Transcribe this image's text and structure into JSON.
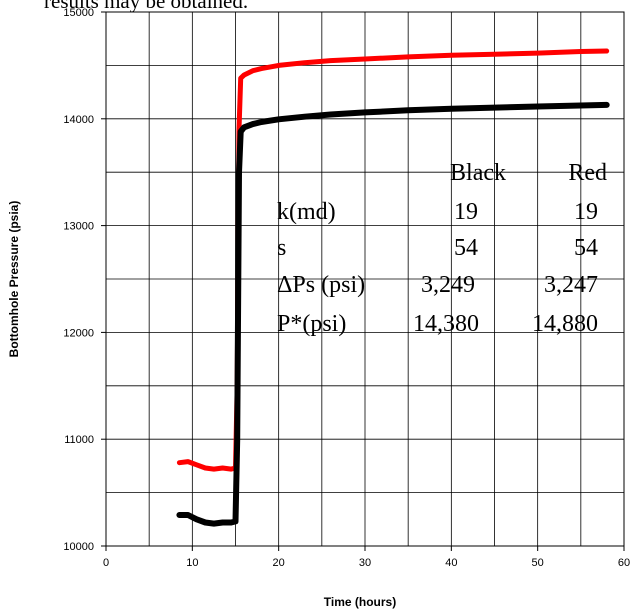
{
  "caption": "results may be obtained.",
  "chart_data": {
    "type": "line",
    "xlabel": "Time (hours)",
    "ylabel": "Bottomhole Pressure (psia)",
    "xlim": [
      0,
      60
    ],
    "ylim": [
      10000,
      15000
    ],
    "x_ticks": [
      "0",
      "10",
      "20",
      "30",
      "40",
      "50",
      "60"
    ],
    "y_ticks": [
      "10000",
      "11000",
      "12000",
      "13000",
      "14000",
      "15000"
    ],
    "grid": true,
    "series": [
      {
        "color": "#ff0000",
        "x": [
          8.5,
          9.5,
          10.5,
          11.5,
          12.5,
          13.5,
          14.5,
          15.0,
          15.2,
          15.4,
          15.6,
          16,
          17,
          18,
          20,
          23,
          26,
          30,
          35,
          40,
          45,
          50,
          55,
          58
        ],
        "y": [
          10780,
          10790,
          10760,
          10730,
          10720,
          10730,
          10720,
          10730,
          11500,
          13900,
          14380,
          14410,
          14450,
          14470,
          14500,
          14525,
          14545,
          14560,
          14580,
          14595,
          14605,
          14615,
          14630,
          14635
        ]
      },
      {
        "color": "#000000",
        "x": [
          8.5,
          9.5,
          10.5,
          11.5,
          12.5,
          13.5,
          14.5,
          15.0,
          15.2,
          15.4,
          15.6,
          16,
          17,
          18,
          20,
          23,
          26,
          30,
          35,
          40,
          45,
          50,
          55,
          58
        ],
        "y": [
          10290,
          10290,
          10250,
          10220,
          10210,
          10220,
          10220,
          10230,
          11000,
          13500,
          13880,
          13920,
          13950,
          13970,
          13995,
          14020,
          14040,
          14060,
          14080,
          14095,
          14105,
          14115,
          14125,
          14130
        ]
      }
    ],
    "table": {
      "headers": [
        "Black",
        "Red"
      ],
      "rows": [
        {
          "label": "k(md)",
          "black": "19",
          "red": "19"
        },
        {
          "label": "s",
          "black": "54",
          "red": "54"
        },
        {
          "label": "ΔPs (psi)",
          "black": "3,249",
          "red": "3,247"
        },
        {
          "label": "P*(psi)",
          "black": "14,380",
          "red": "14,880"
        }
      ]
    }
  }
}
